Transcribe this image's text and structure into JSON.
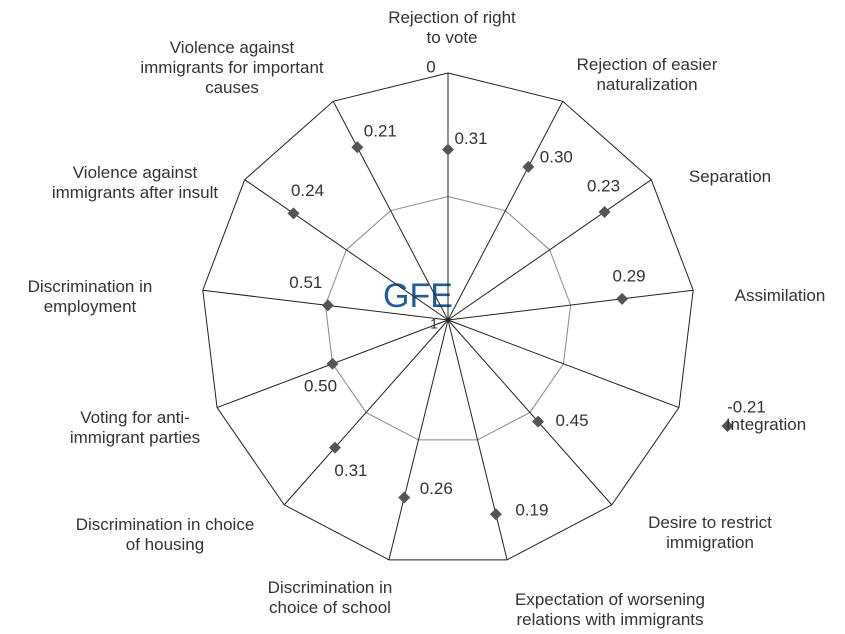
{
  "chart_data": {
    "type": "radar",
    "title": "GFE",
    "categories": [
      "Rejection of right to vote",
      "Rejection of easier naturalization",
      "Separation",
      "Assimilation",
      "Integration",
      "Desire to restrict immigration",
      "Expectation of worsening relations with immigrants",
      "Discrimination in choice of school",
      "Discrimination in choice of housing",
      "Voting for anti-immigrant parties",
      "Discrimination in employment",
      "Violence against immigrants after insult",
      "Violence against immigrants for important causes"
    ],
    "values": [
      0.31,
      0.3,
      0.23,
      0.29,
      -0.21,
      0.45,
      0.19,
      0.26,
      0.31,
      0.5,
      0.51,
      0.24,
      0.21
    ],
    "value_labels": [
      "0.31",
      "0.30",
      "0.23",
      "0.29",
      "-0.21",
      "0.45",
      "0.19",
      "0.26",
      "0.31",
      "0.50",
      "0.51",
      "0.24",
      "0.21"
    ],
    "color": "#555555",
    "rlim": [
      1,
      0
    ],
    "rticks": [
      0,
      1
    ],
    "rgrid": [
      0.5
    ]
  }
}
